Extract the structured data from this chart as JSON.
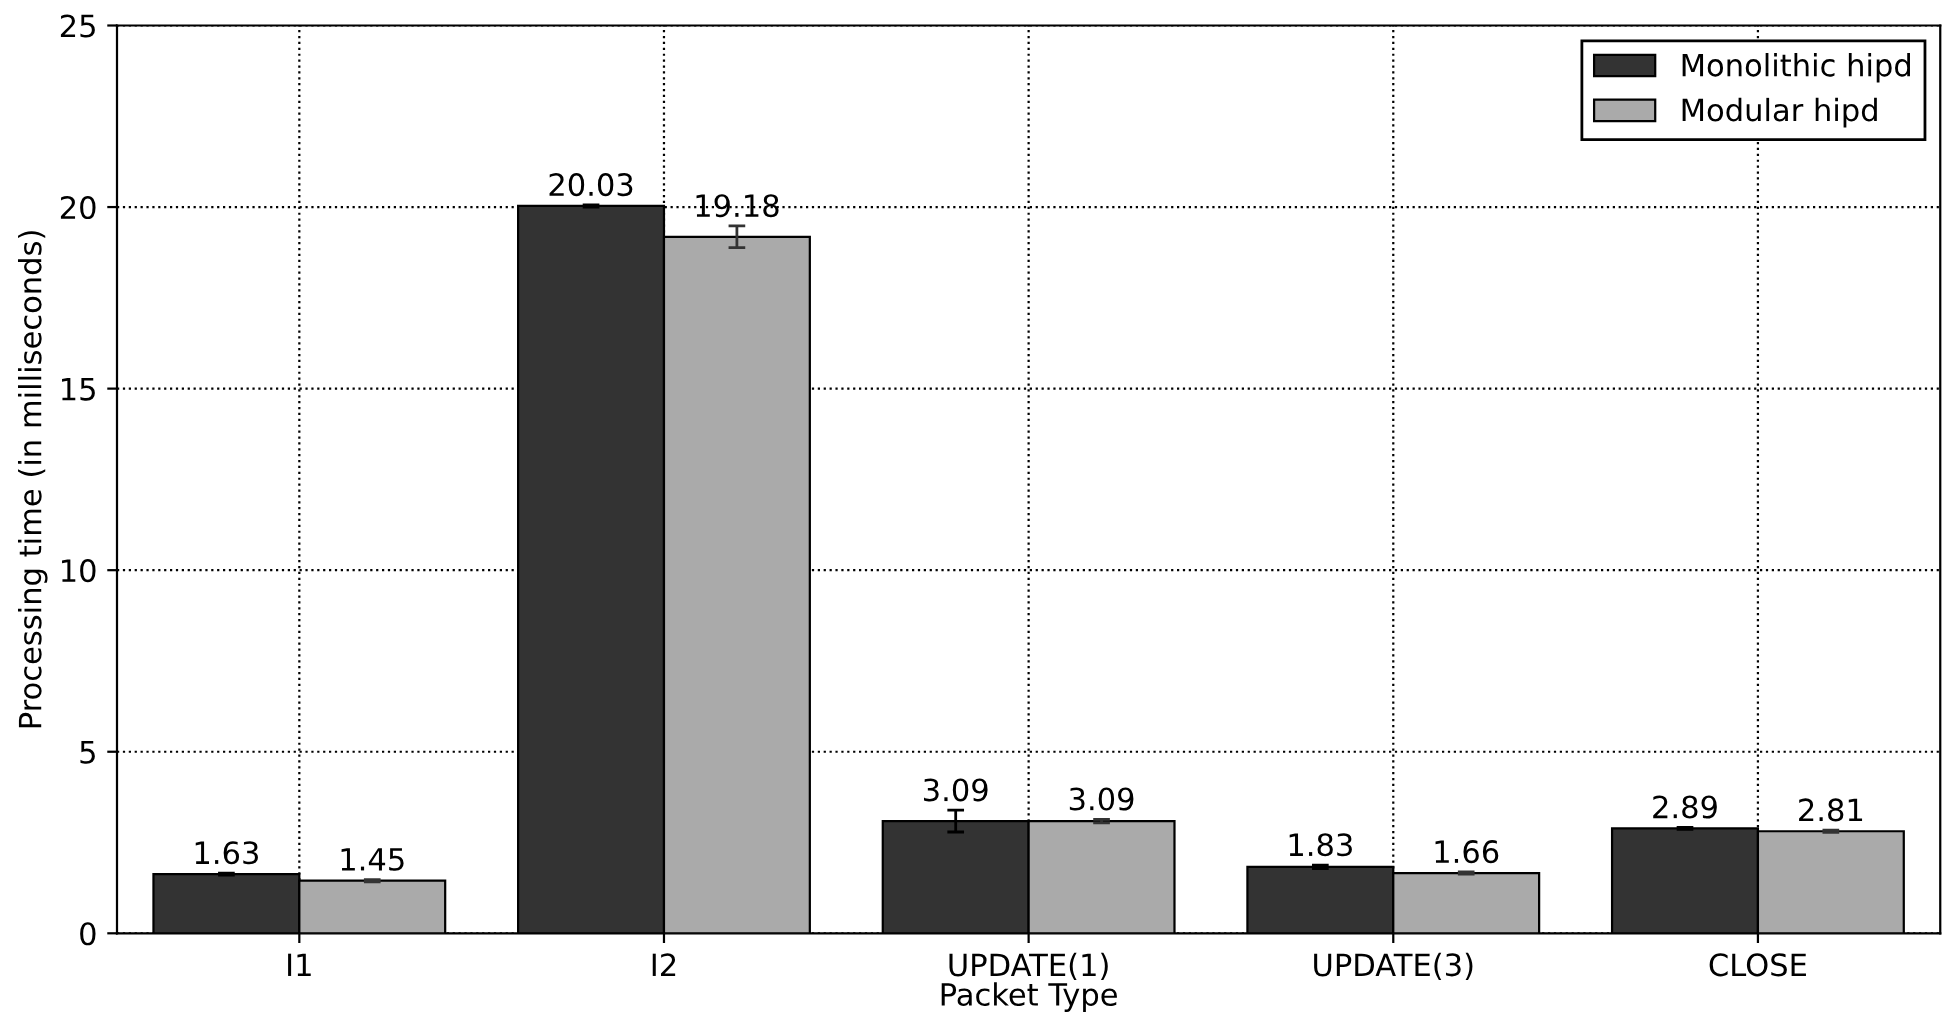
{
  "chart_data": {
    "type": "bar",
    "xlabel": "Packet Type",
    "ylabel": "Processing time (in milliseconds)",
    "categories": [
      "I1",
      "I2",
      "UPDATE(1)",
      "UPDATE(3)",
      "CLOSE"
    ],
    "series": [
      {
        "name": "Monolithic hipd",
        "color": "#333333",
        "values": [
          1.63,
          20.03,
          3.09,
          1.83,
          2.89
        ],
        "errors": [
          0.03,
          0.03,
          0.3,
          0.05,
          0.03
        ]
      },
      {
        "name": "Modular hipd",
        "color": "#aaaaaa",
        "values": [
          1.45,
          19.18,
          3.09,
          1.66,
          2.81
        ],
        "errors": [
          0.03,
          0.3,
          0.05,
          0.03,
          0.03
        ]
      }
    ],
    "ylim": [
      0,
      25
    ],
    "yticks": [
      0,
      5,
      10,
      15,
      20,
      25
    ],
    "grid": true,
    "legend": "top right",
    "data_labels": true
  }
}
